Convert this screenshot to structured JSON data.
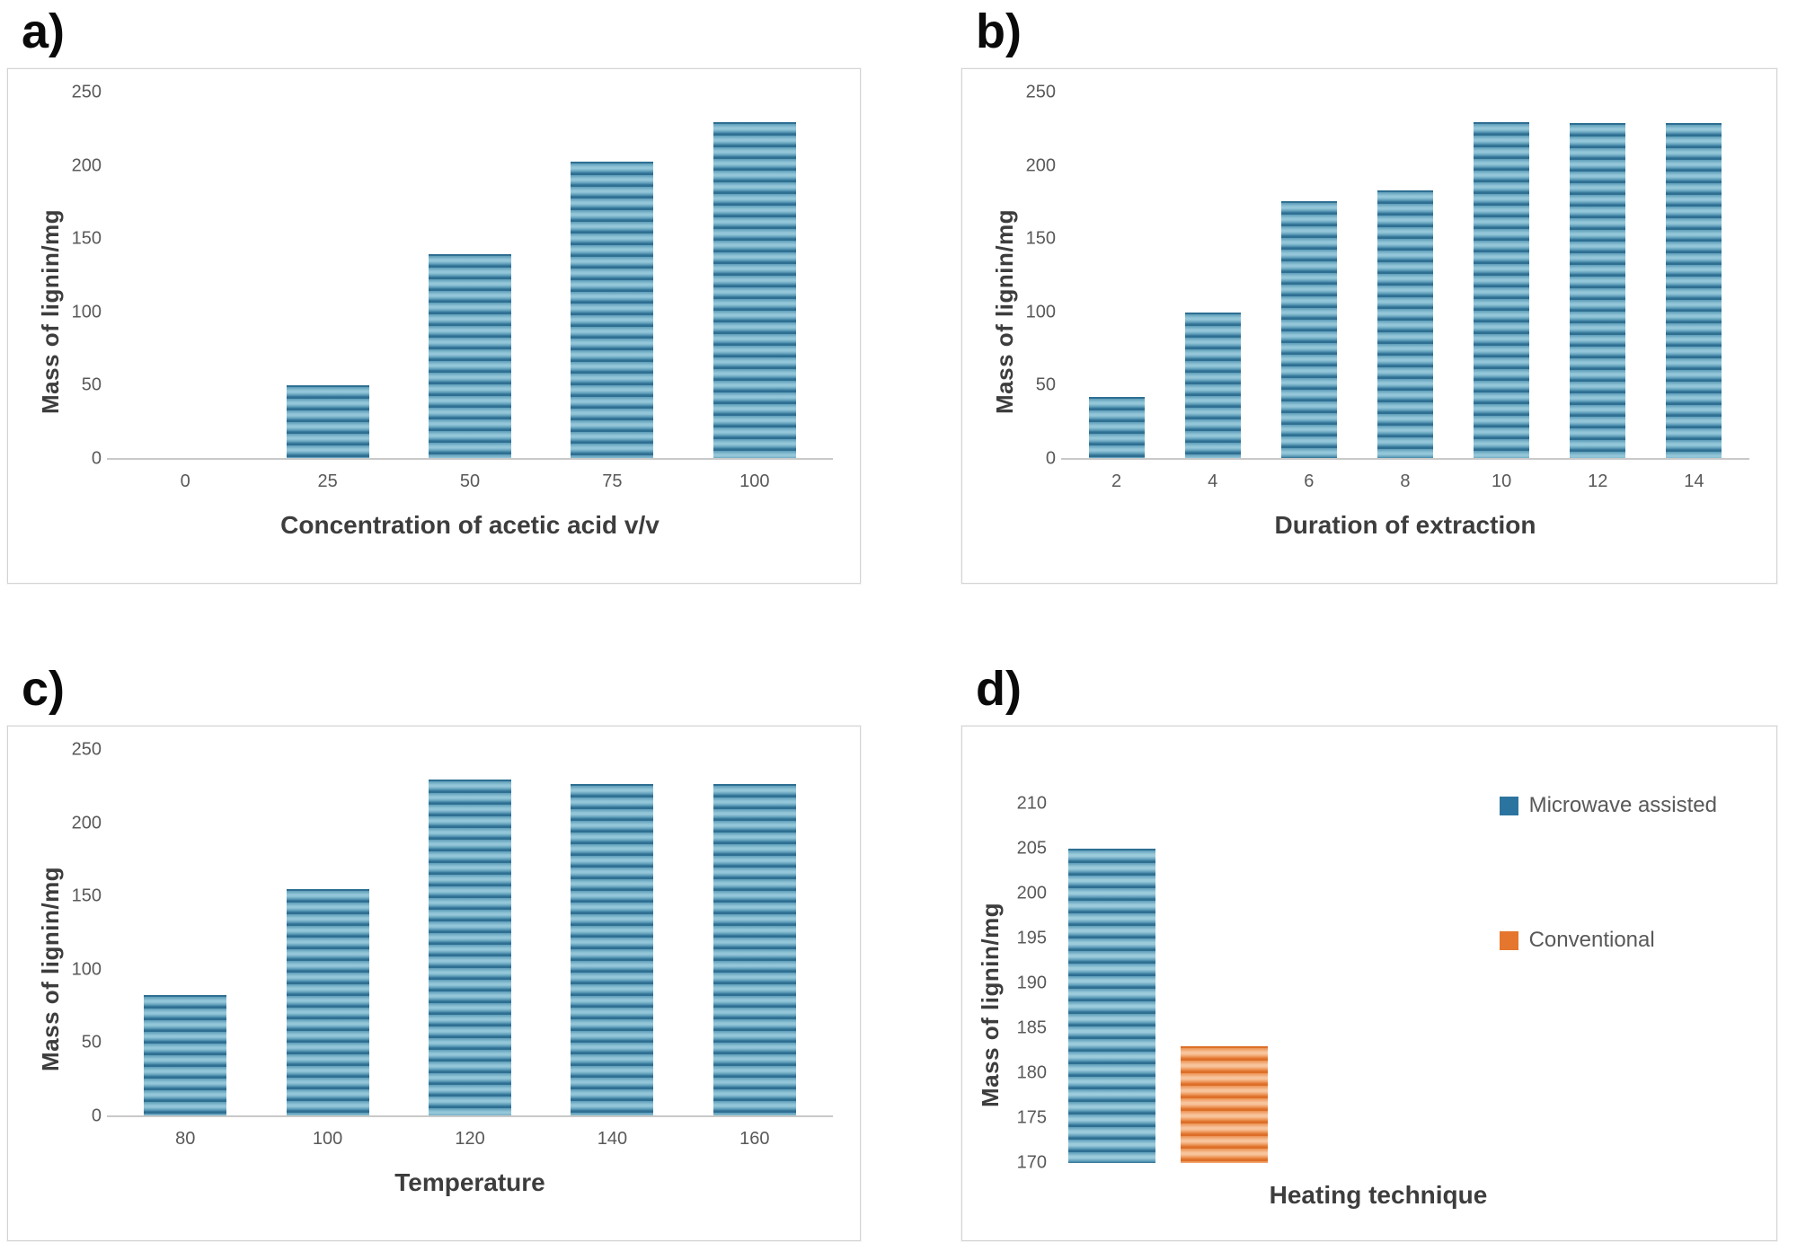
{
  "figure_description": "Four bar charts of lignin extraction results",
  "colors": {
    "bar_blue_dark": "#2e6f92",
    "bar_blue_mid": "#5c9cb8",
    "bar_blue_light": "#93c6d8",
    "bar_orange_dark": "#dd6f28",
    "bar_orange_mid": "#ec9152",
    "bar_orange_light": "#f8c49c",
    "legend_blue": "#2c74a0",
    "legend_orange": "#e5762d",
    "axis_line": "#c9c9c9",
    "tick_text": "#595959",
    "axis_title_text": "#3d3d3d"
  },
  "chart_data": [
    {
      "id": "a",
      "panel_label": "a)",
      "type": "bar",
      "xlabel": "Concentration of acetic acid v/v",
      "ylabel": "Mass of lignin/mg",
      "categories": [
        "0",
        "25",
        "50",
        "75",
        "100"
      ],
      "values": [
        0,
        50,
        140,
        203,
        230
      ],
      "ylim": [
        0,
        250
      ],
      "yticks": [
        0,
        50,
        100,
        150,
        200,
        250
      ],
      "grid": false,
      "legend_position": "none",
      "bar_style": "blue-striped"
    },
    {
      "id": "b",
      "panel_label": "b)",
      "type": "bar",
      "xlabel": "Duration of extraction",
      "ylabel": "Mass of lignin/mg",
      "categories": [
        "2",
        "4",
        "6",
        "8",
        "10",
        "12",
        "14"
      ],
      "values": [
        42,
        100,
        176,
        183,
        230,
        229,
        229
      ],
      "ylim": [
        0,
        250
      ],
      "yticks": [
        0,
        50,
        100,
        150,
        200,
        250
      ],
      "grid": false,
      "legend_position": "none",
      "bar_style": "blue-striped"
    },
    {
      "id": "c",
      "panel_label": "c)",
      "type": "bar",
      "xlabel": "Temperature",
      "ylabel": "Mass of lignin/mg",
      "categories": [
        "80",
        "100",
        "120",
        "140",
        "160"
      ],
      "values": [
        83,
        155,
        230,
        227,
        227
      ],
      "ylim": [
        0,
        250
      ],
      "yticks": [
        0,
        50,
        100,
        150,
        200,
        250
      ],
      "grid": false,
      "legend_position": "none",
      "bar_style": "blue-striped"
    },
    {
      "id": "d",
      "panel_label": "d)",
      "type": "bar",
      "xlabel": "Heating technique",
      "ylabel": "Mass of lignin/mg",
      "ylim": [
        170,
        210
      ],
      "yticks": [
        170,
        175,
        180,
        185,
        190,
        195,
        200,
        205,
        210
      ],
      "series": [
        {
          "name": "Microwave assisted",
          "value": 205,
          "color_key": "blue"
        },
        {
          "name": "Conventional",
          "value": 183,
          "color_key": "orange"
        }
      ],
      "legend": [
        {
          "label": "Microwave assisted",
          "color_key": "blue"
        },
        {
          "label": "Conventional",
          "color_key": "orange"
        }
      ],
      "grid": false,
      "legend_position": "right"
    }
  ]
}
